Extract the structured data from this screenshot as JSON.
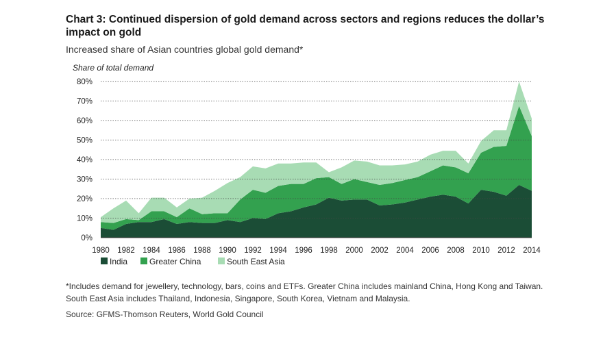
{
  "title": "Chart 3: Continued dispersion of gold demand across sectors and regions reduces the dollar’s impact on gold",
  "subtitle": "Increased share of Asian countries global gold demand*",
  "footnote": "*Includes demand for jewellery, technology, bars, coins and ETFs. Greater China includes mainland China, Hong Kong and Taiwan. South East Asia includes Thailand, Indonesia, Singapore, South Korea, Vietnam and Malaysia.",
  "source": "Source: GFMS-Thomson Reuters, World Gold Council",
  "colors": {
    "india": "#1b4d36",
    "greater_china": "#33a14f",
    "south_east_asia": "#a8dcb4"
  },
  "chart_data": {
    "type": "area",
    "stacked": true,
    "ylabel": "Share of total demand",
    "ylim": [
      0,
      80
    ],
    "yticks": [
      "0%",
      "10%",
      "20%",
      "30%",
      "40%",
      "50%",
      "60%",
      "70%",
      "80%"
    ],
    "xticks": [
      "1980",
      "1982",
      "1984",
      "1986",
      "1988",
      "1990",
      "1992",
      "1994",
      "1996",
      "1998",
      "2000",
      "2002",
      "2004",
      "2006",
      "2008",
      "2010",
      "2012",
      "2014"
    ],
    "grid": true,
    "legend_position": "bottom-left",
    "x": [
      1980,
      1981,
      1982,
      1983,
      1984,
      1985,
      1986,
      1987,
      1988,
      1989,
      1990,
      1991,
      1992,
      1993,
      1994,
      1995,
      1996,
      1997,
      1998,
      1999,
      2000,
      2001,
      2002,
      2003,
      2004,
      2005,
      2006,
      2007,
      2008,
      2009,
      2010,
      2011,
      2012,
      2013,
      2014
    ],
    "series": [
      {
        "name": "India",
        "values": [
          5,
          4,
          7,
          8,
          8,
          9.5,
          7,
          8,
          7.5,
          7.5,
          9,
          8,
          10,
          9.5,
          12.5,
          13.5,
          15.5,
          17,
          20.5,
          19,
          19.5,
          19.5,
          16.5,
          17,
          18,
          19.5,
          21,
          22,
          21,
          17.5,
          24.5,
          23.5,
          21.5,
          27,
          24
        ]
      },
      {
        "name": "Greater China",
        "values": [
          3,
          3.5,
          2.5,
          1,
          5.5,
          4,
          3.5,
          7,
          4.5,
          5,
          3.5,
          11.5,
          14.5,
          13.5,
          14,
          14,
          12,
          13.5,
          10.5,
          8.5,
          10.5,
          9,
          10.5,
          11,
          11.5,
          11.5,
          13,
          15,
          15,
          15.5,
          19,
          23,
          25.5,
          40.5,
          28
        ]
      },
      {
        "name": "South East Asia",
        "values": [
          2.5,
          7.5,
          9.5,
          3.5,
          7,
          7,
          5,
          5,
          8.5,
          11.5,
          15.5,
          11.5,
          12,
          12.5,
          11.5,
          10.5,
          11,
          8,
          2.5,
          8.5,
          9.5,
          10.5,
          10,
          9,
          8,
          8,
          8.5,
          7.5,
          8.5,
          5,
          6,
          8.5,
          8,
          12.5,
          9
        ]
      }
    ]
  }
}
